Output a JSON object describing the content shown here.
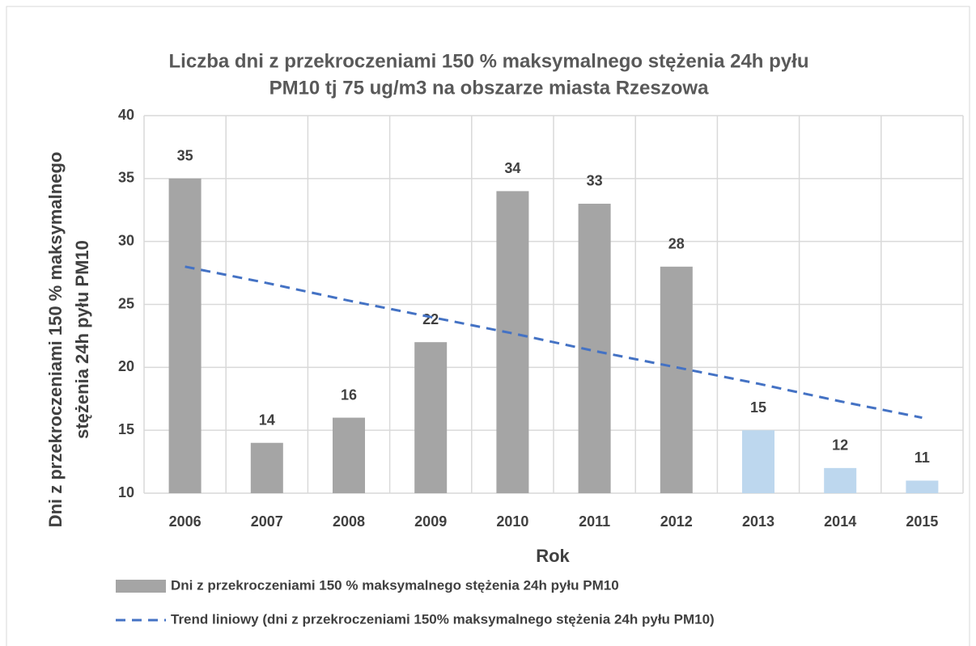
{
  "chart_data": {
    "type": "bar",
    "title": [
      "Liczba dni z przekroczeniami 150 % maksymalnego stężenia 24h pyłu",
      "PM10 tj 75 ug/m3 na obszarze miasta Rzeszowa"
    ],
    "x_label": "Rok",
    "y_label": [
      "Dni z przekroczeniami 150 % maksymalnego",
      "stężenia 24h pyłu PM10"
    ],
    "categories": [
      "2006",
      "2007",
      "2008",
      "2009",
      "2010",
      "2011",
      "2012",
      "2013",
      "2014",
      "2015"
    ],
    "series": [
      {
        "name": "Dni z przekroczeniami 150 % maksymalnego stężenia 24h pyłu PM10",
        "type": "bar",
        "color": "#a5a5a5",
        "colors": [
          "#a5a5a5",
          "#a5a5a5",
          "#a5a5a5",
          "#a5a5a5",
          "#a5a5a5",
          "#a5a5a5",
          "#a5a5a5",
          "#bdd7ee",
          "#bdd7ee",
          "#bdd7ee"
        ],
        "values": [
          35,
          14,
          16,
          22,
          34,
          33,
          28,
          15,
          12,
          11
        ]
      },
      {
        "name": "Trend liniowy (dni z przekroczeniami 150% maksymalnego stężenia 24h pyłu PM10)",
        "type": "line",
        "dashed": true,
        "color": "#4472c4",
        "values": [
          28,
          26.7,
          25.3,
          24,
          22.7,
          21.3,
          20,
          18.7,
          17.3,
          16
        ]
      }
    ],
    "ylim": [
      10,
      40
    ],
    "yticks": [
      10,
      15,
      20,
      25,
      30,
      35,
      40
    ],
    "grid": true,
    "legend": "bottom"
  }
}
